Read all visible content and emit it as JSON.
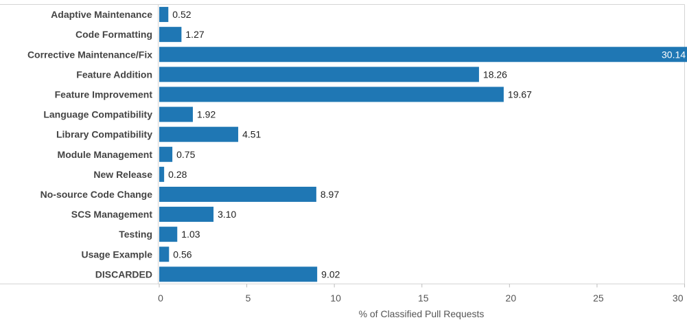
{
  "chart_data": {
    "type": "bar",
    "orientation": "horizontal",
    "categories": [
      "Adaptive Maintenance",
      "Code Formatting",
      "Corrective Maintenance/Fix",
      "Feature Addition",
      "Feature Improvement",
      "Language Compatibility",
      "Library Compatibility",
      "Module Management",
      "New Release",
      "No-source Code Change",
      "SCS Management",
      "Testing",
      "Usage Example",
      "DISCARDED"
    ],
    "values": [
      0.52,
      1.27,
      30.14,
      18.26,
      19.67,
      1.92,
      4.51,
      0.75,
      0.28,
      8.97,
      3.1,
      1.03,
      0.56,
      9.02
    ],
    "value_labels": [
      "0.52",
      "1.27",
      "30.14",
      "18.26",
      "19.67",
      "1.92",
      "4.51",
      "0.75",
      "0.28",
      "8.97",
      "3.10",
      "1.03",
      "0.56",
      "9.02"
    ],
    "title": "",
    "xlabel": "% of Classified Pull Requests",
    "ylabel": "",
    "xlim": [
      0,
      30
    ],
    "xticks": [
      0,
      5,
      10,
      15,
      20,
      25,
      30
    ],
    "grid": false,
    "legend": "none",
    "bar_color": "#1f77b4"
  }
}
